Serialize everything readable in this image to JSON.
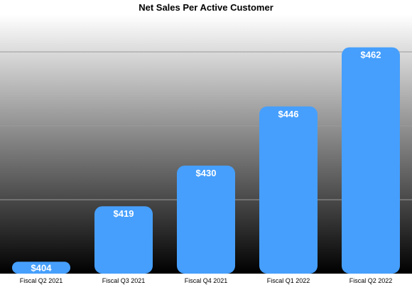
{
  "chart_data": {
    "type": "bar",
    "title": "Net Sales Per Active Customer",
    "categories": [
      "Fiscal Q2 2021",
      "Fiscal Q3 2021",
      "Fiscal Q4 2021",
      "Fiscal Q1 2022",
      "Fiscal Q2 2022"
    ],
    "values": [
      404,
      419,
      430,
      446,
      462
    ],
    "value_labels": [
      "$404",
      "$419",
      "$430",
      "$446",
      "$462"
    ],
    "ylim": [
      400,
      470
    ],
    "grid": true,
    "legend": "none",
    "colors": {
      "bar": "#469ffc",
      "label": "#ffffff",
      "grid": "#9a9a9a",
      "gradient_top": "#ffffff",
      "gradient_bottom": "#000000"
    }
  }
}
